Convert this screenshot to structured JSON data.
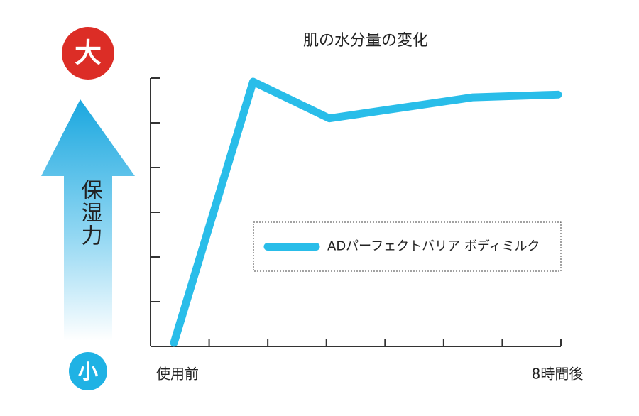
{
  "chart_data": {
    "type": "line",
    "title": "肌の水分量の変化",
    "y_label": "保湿力",
    "y_high_label": "大",
    "y_low_label": "小",
    "x_start_label": "使用前",
    "x_end_label": "8時間後",
    "x": [
      0.4,
      1.75,
      3.05,
      5.5,
      6.95
    ],
    "series": [
      {
        "name": "ADパーフェクトバリア ボディミルク",
        "color": "#29bde9",
        "values": [
          0.08,
          5.92,
          5.1,
          5.57,
          5.63
        ]
      }
    ],
    "xlim": [
      0,
      7
    ],
    "xticks": [
      0,
      1,
      2,
      3,
      4,
      5,
      6,
      7
    ],
    "ylim": [
      0,
      6
    ],
    "yticks": [
      0,
      1,
      2,
      3,
      4,
      5,
      6
    ],
    "legend": "center right"
  }
}
